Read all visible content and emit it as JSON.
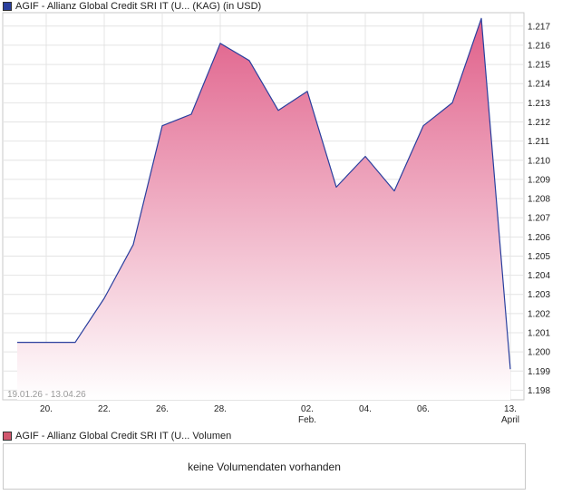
{
  "price_legend": {
    "label": "AGIF - Allianz Global Credit SRI IT (U...  (KAG)  (in USD)",
    "color": "#2a3f9e"
  },
  "volume_legend": {
    "label": "AGIF - Allianz Global Credit SRI IT (U...  Volumen",
    "color": "#d2576e"
  },
  "volume_message": "keine Volumendaten vorhanden",
  "date_range": "19.01.26 - 13.04.26",
  "chart_data": {
    "type": "area",
    "line_color": "#2a3f9e",
    "fill_top_color": "#e0608a",
    "fill_bottom_color": "#ffffff",
    "grid": true,
    "ylim": [
      1.1975,
      1.2177
    ],
    "yticks": [
      1.198,
      1.199,
      1.2,
      1.201,
      1.202,
      1.203,
      1.204,
      1.205,
      1.206,
      1.207,
      1.208,
      1.209,
      1.21,
      1.211,
      1.212,
      1.213,
      1.214,
      1.215,
      1.216,
      1.217
    ],
    "xlim": [
      "2026-01-19",
      "2026-04-13"
    ],
    "xticks": [
      {
        "date": "2026-01-20",
        "label": "20.",
        "sub": ""
      },
      {
        "date": "2026-01-22",
        "label": "22.",
        "sub": ""
      },
      {
        "date": "2026-01-26",
        "label": "26.",
        "sub": ""
      },
      {
        "date": "2026-01-28",
        "label": "28.",
        "sub": ""
      },
      {
        "date": "2026-02-02",
        "label": "02.",
        "sub": "Feb."
      },
      {
        "date": "2026-02-04",
        "label": "04.",
        "sub": ""
      },
      {
        "date": "2026-02-06",
        "label": "06.",
        "sub": ""
      },
      {
        "date": "2026-04-13",
        "label": "13.",
        "sub": "April"
      }
    ],
    "points": [
      {
        "date": "2026-01-19",
        "value": 1.2005
      },
      {
        "date": "2026-01-21",
        "value": 1.2005
      },
      {
        "date": "2026-01-22",
        "value": 1.2028
      },
      {
        "date": "2026-01-23",
        "value": 1.2056
      },
      {
        "date": "2026-01-26",
        "value": 1.2118
      },
      {
        "date": "2026-01-27",
        "value": 1.2124
      },
      {
        "date": "2026-01-28",
        "value": 1.2161
      },
      {
        "date": "2026-01-29",
        "value": 1.2152
      },
      {
        "date": "2026-01-30",
        "value": 1.2126
      },
      {
        "date": "2026-02-02",
        "value": 1.2136
      },
      {
        "date": "2026-02-03",
        "value": 1.2086
      },
      {
        "date": "2026-02-04",
        "value": 1.2102
      },
      {
        "date": "2026-02-05",
        "value": 1.2084
      },
      {
        "date": "2026-02-06",
        "value": 1.2118
      },
      {
        "date": "2026-02-09",
        "value": 1.213
      },
      {
        "date": "2026-02-10",
        "value": 1.2174
      },
      {
        "date": "2026-04-13",
        "value": 1.1991
      }
    ]
  }
}
